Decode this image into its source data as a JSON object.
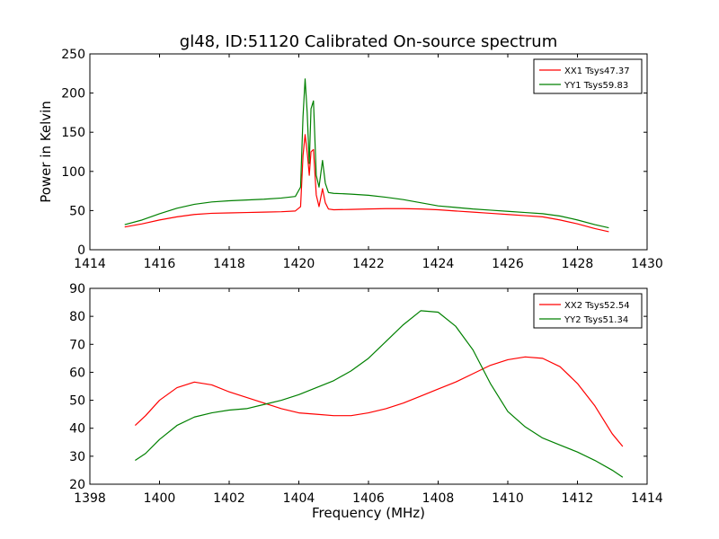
{
  "title": "gl48, ID:51120 Calibrated On-source spectrum",
  "xlabel": "Frequency (MHz)",
  "ylabel": "Power in Kelvin",
  "colors": {
    "xx": "#ff0000",
    "yy": "#008000"
  },
  "chart_data": [
    {
      "type": "line",
      "title": "gl48, ID:51120 Calibrated On-source spectrum",
      "xlabel": "",
      "ylabel": "Power in Kelvin",
      "xlim": [
        1414,
        1430
      ],
      "ylim": [
        0,
        250
      ],
      "xticks": [
        1414,
        1416,
        1418,
        1420,
        1422,
        1424,
        1426,
        1428,
        1430
      ],
      "yticks": [
        0,
        50,
        100,
        150,
        200,
        250
      ],
      "grid": false,
      "legend": "top-right",
      "series": [
        {
          "name": "XX1 Tsys47.37",
          "color": "#ff0000",
          "points": [
            [
              1415,
              29
            ],
            [
              1415.5,
              33
            ],
            [
              1416,
              38
            ],
            [
              1416.5,
              42
            ],
            [
              1417,
              45
            ],
            [
              1417.5,
              46.5
            ],
            [
              1418,
              47
            ],
            [
              1418.5,
              47.5
            ],
            [
              1419,
              48
            ],
            [
              1419.5,
              48.5
            ],
            [
              1419.9,
              49.5
            ],
            [
              1420.05,
              55
            ],
            [
              1420.12,
              120
            ],
            [
              1420.18,
              147
            ],
            [
              1420.25,
              120
            ],
            [
              1420.3,
              95
            ],
            [
              1420.35,
              125
            ],
            [
              1420.42,
              128
            ],
            [
              1420.5,
              70
            ],
            [
              1420.58,
              55
            ],
            [
              1420.68,
              78
            ],
            [
              1420.76,
              60
            ],
            [
              1420.85,
              52
            ],
            [
              1421,
              51
            ],
            [
              1421.5,
              51.5
            ],
            [
              1422,
              52
            ],
            [
              1422.5,
              52.5
            ],
            [
              1423,
              52.5
            ],
            [
              1423.5,
              52
            ],
            [
              1424,
              51
            ],
            [
              1424.5,
              49.5
            ],
            [
              1425,
              48
            ],
            [
              1425.5,
              46.5
            ],
            [
              1426,
              45
            ],
            [
              1426.5,
              43.5
            ],
            [
              1427,
              42
            ],
            [
              1427.5,
              38
            ],
            [
              1428,
              33
            ],
            [
              1428.5,
              27
            ],
            [
              1428.9,
              23
            ]
          ]
        },
        {
          "name": "YY1 Tsys59.83",
          "color": "#008000",
          "points": [
            [
              1415,
              32
            ],
            [
              1415.5,
              38
            ],
            [
              1416,
              46
            ],
            [
              1416.5,
              53
            ],
            [
              1417,
              58
            ],
            [
              1417.5,
              61
            ],
            [
              1418,
              62.5
            ],
            [
              1418.5,
              63.5
            ],
            [
              1419,
              64.5
            ],
            [
              1419.5,
              66
            ],
            [
              1419.9,
              68
            ],
            [
              1420.05,
              80
            ],
            [
              1420.12,
              170
            ],
            [
              1420.18,
              218
            ],
            [
              1420.24,
              175
            ],
            [
              1420.3,
              110
            ],
            [
              1420.35,
              180
            ],
            [
              1420.42,
              190
            ],
            [
              1420.5,
              95
            ],
            [
              1420.58,
              80
            ],
            [
              1420.68,
              114
            ],
            [
              1420.76,
              85
            ],
            [
              1420.85,
              73
            ],
            [
              1421,
              72
            ],
            [
              1421.5,
              71
            ],
            [
              1422,
              69.5
            ],
            [
              1422.5,
              67
            ],
            [
              1423,
              64
            ],
            [
              1423.5,
              60
            ],
            [
              1424,
              56
            ],
            [
              1424.5,
              54
            ],
            [
              1425,
              52
            ],
            [
              1425.5,
              50.5
            ],
            [
              1426,
              49
            ],
            [
              1426.5,
              47.5
            ],
            [
              1427,
              46
            ],
            [
              1427.5,
              43
            ],
            [
              1428,
              38
            ],
            [
              1428.5,
              32
            ],
            [
              1428.9,
              28
            ]
          ]
        }
      ]
    },
    {
      "type": "line",
      "title": "",
      "xlabel": "Frequency (MHz)",
      "ylabel": "",
      "xlim": [
        1398,
        1414
      ],
      "ylim": [
        20,
        90
      ],
      "xticks": [
        1398,
        1400,
        1402,
        1404,
        1406,
        1408,
        1410,
        1412,
        1414
      ],
      "yticks": [
        20,
        30,
        40,
        50,
        60,
        70,
        80,
        90
      ],
      "grid": false,
      "legend": "top-right",
      "series": [
        {
          "name": "XX2 Tsys52.54",
          "color": "#ff0000",
          "points": [
            [
              1399.3,
              41
            ],
            [
              1399.6,
              44.5
            ],
            [
              1400,
              50
            ],
            [
              1400.5,
              54.5
            ],
            [
              1401,
              56.5
            ],
            [
              1401.5,
              55.5
            ],
            [
              1402,
              53
            ],
            [
              1402.5,
              51
            ],
            [
              1403,
              49
            ],
            [
              1403.5,
              47
            ],
            [
              1404,
              45.5
            ],
            [
              1404.5,
              45
            ],
            [
              1405,
              44.5
            ],
            [
              1405.5,
              44.5
            ],
            [
              1406,
              45.5
            ],
            [
              1406.5,
              47
            ],
            [
              1407,
              49
            ],
            [
              1407.5,
              51.5
            ],
            [
              1408,
              54
            ],
            [
              1408.5,
              56.5
            ],
            [
              1409,
              59.5
            ],
            [
              1409.5,
              62.5
            ],
            [
              1410,
              64.5
            ],
            [
              1410.5,
              65.5
            ],
            [
              1411,
              65
            ],
            [
              1411.5,
              62
            ],
            [
              1412,
              56
            ],
            [
              1412.5,
              48
            ],
            [
              1413,
              38
            ],
            [
              1413.3,
              33.5
            ]
          ]
        },
        {
          "name": "YY2 Tsys51.34",
          "color": "#008000",
          "points": [
            [
              1399.3,
              28.5
            ],
            [
              1399.6,
              31
            ],
            [
              1400,
              36
            ],
            [
              1400.5,
              41
            ],
            [
              1401,
              44
            ],
            [
              1401.5,
              45.5
            ],
            [
              1402,
              46.5
            ],
            [
              1402.5,
              47
            ],
            [
              1403,
              48.5
            ],
            [
              1403.5,
              50
            ],
            [
              1404,
              52
            ],
            [
              1404.5,
              54.5
            ],
            [
              1405,
              57
            ],
            [
              1405.5,
              60.5
            ],
            [
              1406,
              65
            ],
            [
              1406.5,
              71
            ],
            [
              1407,
              77
            ],
            [
              1407.5,
              82
            ],
            [
              1408,
              81.5
            ],
            [
              1408.5,
              76.5
            ],
            [
              1409,
              68
            ],
            [
              1409.5,
              56
            ],
            [
              1410,
              46
            ],
            [
              1410.5,
              40.5
            ],
            [
              1411,
              36.5
            ],
            [
              1411.5,
              34
            ],
            [
              1412,
              31.5
            ],
            [
              1412.5,
              28.5
            ],
            [
              1413,
              25
            ],
            [
              1413.3,
              22.5
            ]
          ]
        }
      ]
    }
  ]
}
